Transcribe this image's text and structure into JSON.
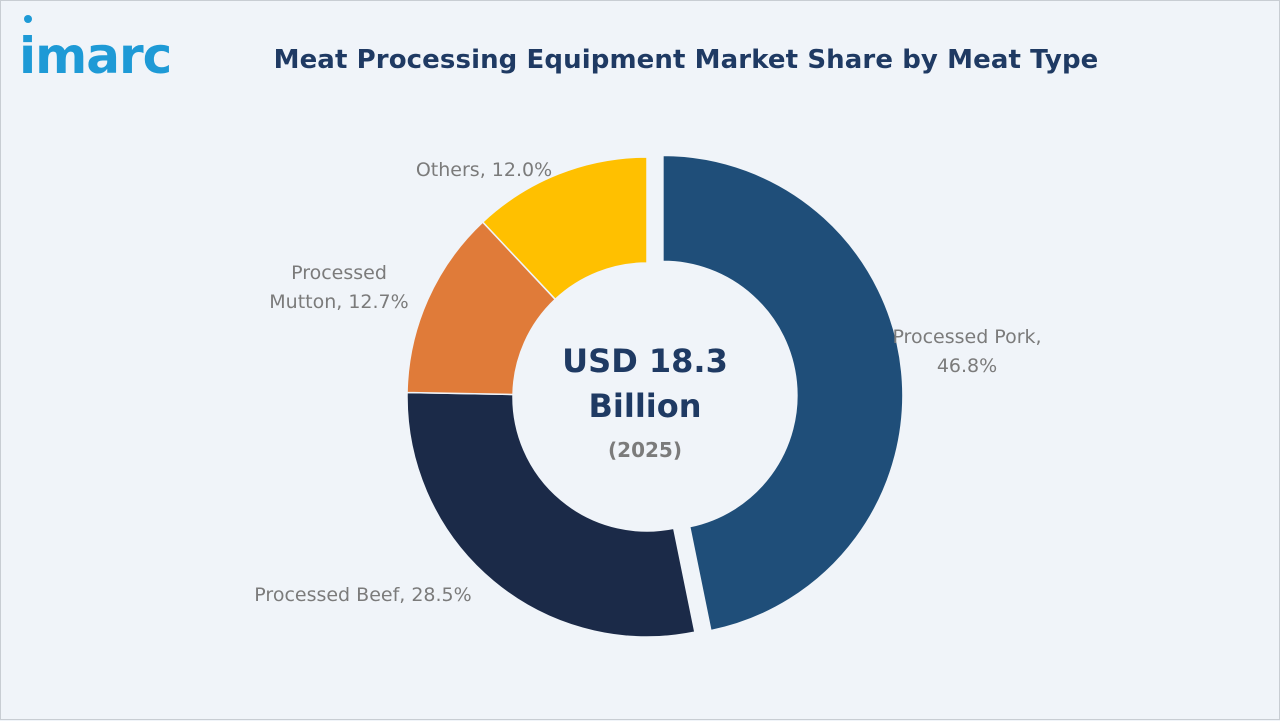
{
  "brand": {
    "name": "imarc",
    "color": "#1e9ad6"
  },
  "chart_data": {
    "type": "pie",
    "title": "Meat Processing Equipment Market Share by Meat Type",
    "donut": true,
    "center_text": {
      "line1": "USD 18.3",
      "line2": "Billion",
      "line3": "(2025)"
    },
    "slices": [
      {
        "name": "Processed Pork",
        "value": 46.8,
        "color": "#1f4e79",
        "label_lines": [
          "Processed Pork,",
          "46.8%"
        ],
        "exploded": true
      },
      {
        "name": "Processed Beef",
        "value": 28.5,
        "color": "#1b2a48",
        "label_lines": [
          "Processed Beef, 28.5%"
        ],
        "exploded": false
      },
      {
        "name": "Processed Mutton",
        "value": 12.7,
        "color": "#e07b39",
        "label_lines": [
          "Processed",
          "Mutton, 12.7%"
        ],
        "exploded": false
      },
      {
        "name": "Others",
        "value": 12.0,
        "color": "#ffc000",
        "label_lines": [
          "Others, 12.0%"
        ],
        "exploded": false
      }
    ],
    "unit": "%",
    "legend": "none"
  }
}
